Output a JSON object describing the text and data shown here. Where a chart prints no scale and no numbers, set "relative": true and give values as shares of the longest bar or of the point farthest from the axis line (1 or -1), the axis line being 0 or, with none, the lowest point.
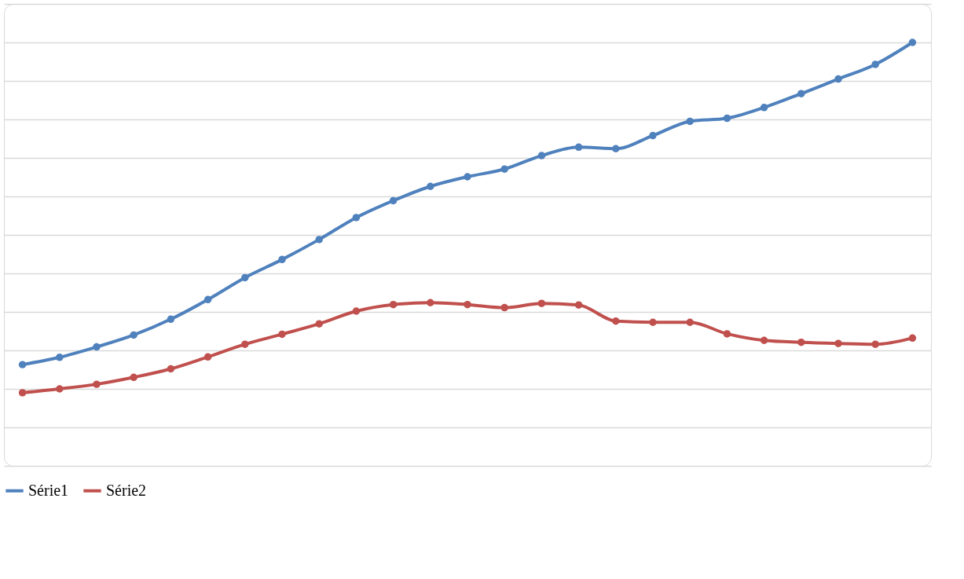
{
  "chart_data": {
    "type": "line",
    "relative": true,
    "categories": [
      null,
      null,
      null,
      null,
      null,
      null,
      null,
      null,
      null,
      null,
      null,
      null,
      null,
      null,
      null,
      null,
      null,
      null,
      null,
      null,
      null,
      null,
      null,
      null,
      null
    ],
    "series": [
      {
        "name": "Série1",
        "color": "#4f81bd",
        "values": [
          0.163,
          0.182,
          0.209,
          0.24,
          0.281,
          0.332,
          0.389,
          0.436,
          0.488,
          0.545,
          0.589,
          0.626,
          0.651,
          0.671,
          0.706,
          0.728,
          0.724,
          0.758,
          0.795,
          0.803,
          0.831,
          0.867,
          0.905,
          0.943,
          1.0
        ]
      },
      {
        "name": "Série2",
        "color": "#c0504d",
        "values": [
          0.09,
          0.1,
          0.112,
          0.13,
          0.152,
          0.183,
          0.216,
          0.242,
          0.269,
          0.302,
          0.319,
          0.324,
          0.319,
          0.311,
          0.322,
          0.318,
          0.276,
          0.273,
          0.273,
          0.243,
          0.226,
          0.221,
          0.218,
          0.216,
          0.232
        ]
      }
    ],
    "grid": "y",
    "legend": "bottom",
    "marker": "circle",
    "line_style": "solid"
  }
}
